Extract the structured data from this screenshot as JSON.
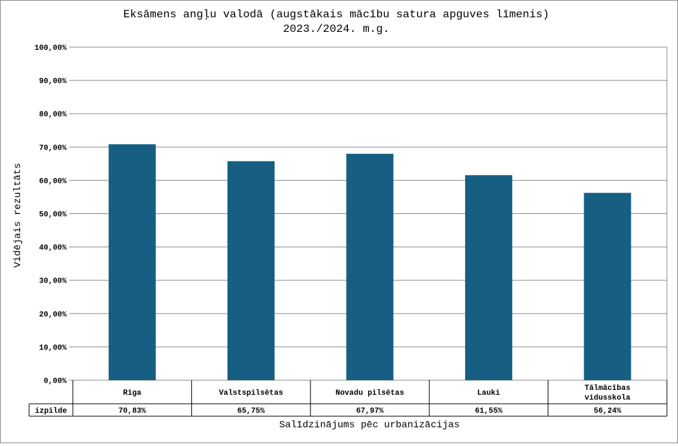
{
  "chart_data": {
    "type": "bar",
    "title": "Eksāmens angļu valodā (augstākais mācību satura apguves līmenis)",
    "subtitle": "2023./2024. m.g.",
    "xlabel": "Salīdzinājums pēc urbanizācijas",
    "ylabel": "Vidējais rezultāts",
    "ylim": [
      0,
      100
    ],
    "yticks": [
      "0,00%",
      "10,00%",
      "20,00%",
      "30,00%",
      "40,00%",
      "50,00%",
      "60,00%",
      "70,00%",
      "80,00%",
      "90,00%",
      "100,00%"
    ],
    "categories": [
      [
        "Rīga"
      ],
      [
        "Valstspilsētas"
      ],
      [
        "Novadu pilsētas"
      ],
      [
        "Lauki"
      ],
      [
        "Tālmācības",
        "vidusskola"
      ]
    ],
    "series": [
      {
        "name": "izpilde",
        "values": [
          70.83,
          65.75,
          67.97,
          61.55,
          56.24
        ],
        "labels": [
          "70,83%",
          "65,75%",
          "67,97%",
          "61,55%",
          "56,24%"
        ]
      }
    ],
    "grid": true,
    "legend": "data-table",
    "colors": {
      "bar": "#175f82",
      "grid": "#8c8c8c",
      "axis": "#808080"
    }
  }
}
